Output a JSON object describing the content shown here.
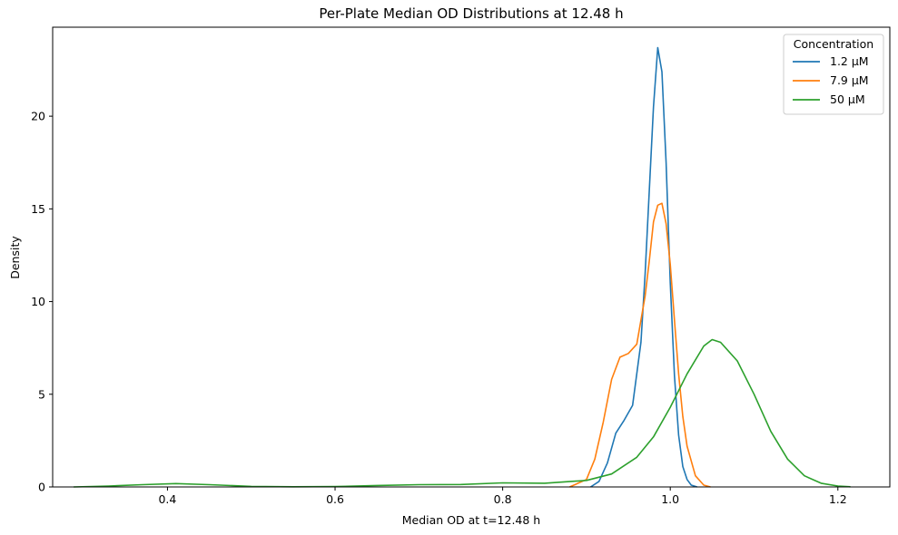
{
  "chart_data": {
    "type": "line",
    "title": "Per-Plate Median OD Distributions at 12.48 h",
    "xlabel": "Median OD at t=12.48 h",
    "ylabel": "Density",
    "xlim": [
      0.263,
      1.262
    ],
    "ylim": [
      0,
      24.8
    ],
    "xticks": [
      0.4,
      0.6,
      0.8,
      1.0,
      1.2
    ],
    "xtick_labels": [
      "0.4",
      "0.6",
      "0.8",
      "1.0",
      "1.2"
    ],
    "yticks": [
      0,
      5,
      10,
      15,
      20
    ],
    "ytick_labels": [
      "0",
      "5",
      "10",
      "15",
      "20"
    ],
    "grid": false,
    "legend": {
      "title": "Concentration",
      "placement": "top-right"
    },
    "series": [
      {
        "name": "1.2 µM",
        "color": "#1f77b4",
        "x": [
          0.905,
          0.915,
          0.925,
          0.935,
          0.945,
          0.955,
          0.965,
          0.97,
          0.975,
          0.98,
          0.985,
          0.99,
          0.995,
          1.0,
          1.005,
          1.01,
          1.015,
          1.02,
          1.025,
          1.032
        ],
        "y": [
          0.0,
          0.3,
          1.3,
          2.9,
          3.6,
          4.4,
          7.8,
          11.5,
          16.0,
          20.5,
          23.7,
          22.4,
          17.5,
          11.0,
          6.0,
          2.8,
          1.1,
          0.4,
          0.1,
          0.0
        ]
      },
      {
        "name": "7.9 µM",
        "color": "#ff7f0e",
        "x": [
          0.88,
          0.9,
          0.91,
          0.92,
          0.93,
          0.94,
          0.95,
          0.96,
          0.97,
          0.975,
          0.98,
          0.985,
          0.99,
          0.995,
          1.0,
          1.005,
          1.01,
          1.015,
          1.02,
          1.03,
          1.04,
          1.048
        ],
        "y": [
          0.0,
          0.4,
          1.5,
          3.5,
          5.8,
          7.0,
          7.2,
          7.7,
          10.3,
          12.2,
          14.3,
          15.2,
          15.3,
          14.2,
          12.0,
          9.0,
          6.1,
          3.8,
          2.2,
          0.6,
          0.1,
          0.0
        ]
      },
      {
        "name": "50 µM",
        "color": "#2ca02c",
        "x": [
          0.288,
          0.33,
          0.37,
          0.41,
          0.45,
          0.5,
          0.55,
          0.6,
          0.65,
          0.7,
          0.75,
          0.8,
          0.85,
          0.9,
          0.93,
          0.96,
          0.98,
          1.0,
          1.02,
          1.04,
          1.05,
          1.06,
          1.08,
          1.1,
          1.12,
          1.14,
          1.16,
          1.18,
          1.2,
          1.215
        ],
        "y": [
          0.0,
          0.05,
          0.12,
          0.18,
          0.12,
          0.03,
          0.01,
          0.02,
          0.08,
          0.12,
          0.13,
          0.22,
          0.2,
          0.35,
          0.7,
          1.6,
          2.7,
          4.3,
          6.1,
          7.6,
          7.95,
          7.8,
          6.8,
          5.0,
          3.0,
          1.5,
          0.6,
          0.2,
          0.05,
          0.01
        ]
      }
    ]
  }
}
